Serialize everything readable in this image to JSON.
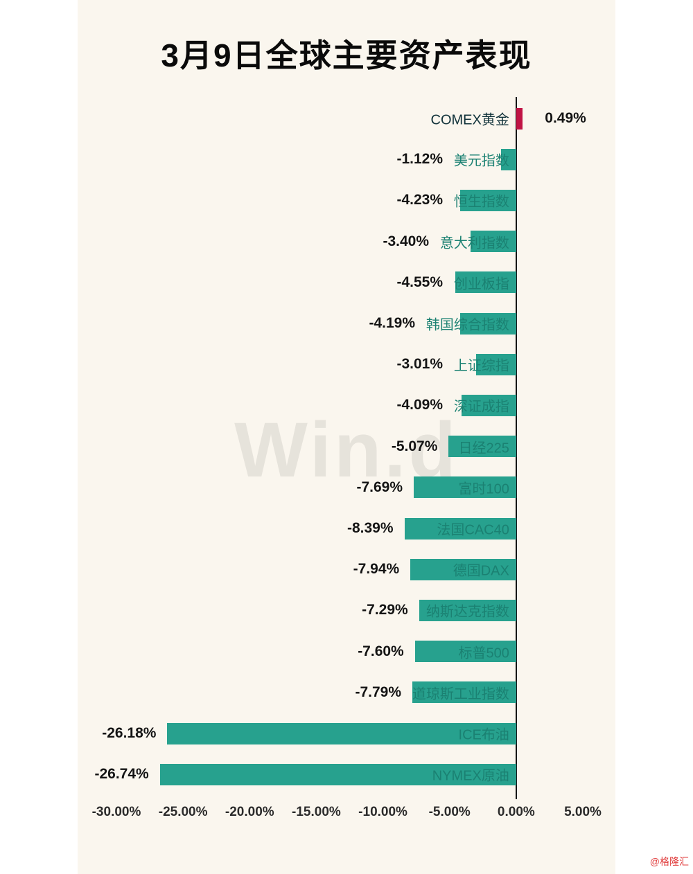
{
  "title": "3月9日全球主要资产表现",
  "watermark": "Win.d",
  "credit": "@格隆汇",
  "colors": {
    "negative_bar": "#27a18e",
    "positive_bar": "#c01445",
    "category_label": "#1b8172",
    "value_label": "#141414",
    "background": "#faf6ee"
  },
  "chart_data": {
    "type": "bar",
    "orientation": "horizontal",
    "title": "3月9日全球主要资产表现",
    "categories": [
      "COMEX黄金",
      "美元指数",
      "恒生指数",
      "意大利指数",
      "创业板指",
      "韩国综合指数",
      "上证综指",
      "深证成指",
      "日经225",
      "富时100",
      "法国CAC40",
      "德国DAX",
      "纳斯达克指数",
      "标普500",
      "道琼斯工业指数",
      "ICE布油",
      "NYMEX原油"
    ],
    "values": [
      0.49,
      -1.12,
      -4.23,
      -3.4,
      -4.55,
      -4.19,
      -3.01,
      -4.09,
      -5.07,
      -7.69,
      -8.39,
      -7.94,
      -7.29,
      -7.6,
      -7.79,
      -26.18,
      -26.74
    ],
    "value_labels": [
      "0.49%",
      "-1.12%",
      "-4.23%",
      "-3.40%",
      "-4.55%",
      "-4.19%",
      "-3.01%",
      "-4.09%",
      "-5.07%",
      "-7.69%",
      "-8.39%",
      "-7.94%",
      "-7.29%",
      "-7.60%",
      "-7.79%",
      "-26.18%",
      "-26.74%"
    ],
    "xlim": [
      -30,
      5
    ],
    "x_ticks": [
      "-30.00%",
      "-25.00%",
      "-20.00%",
      "-15.00%",
      "-10.00%",
      "-5.00%",
      "0.00%",
      "5.00%"
    ],
    "x_tick_values": [
      -30,
      -25,
      -20,
      -15,
      -10,
      -5,
      0,
      5
    ],
    "grid": false,
    "legend": false
  }
}
